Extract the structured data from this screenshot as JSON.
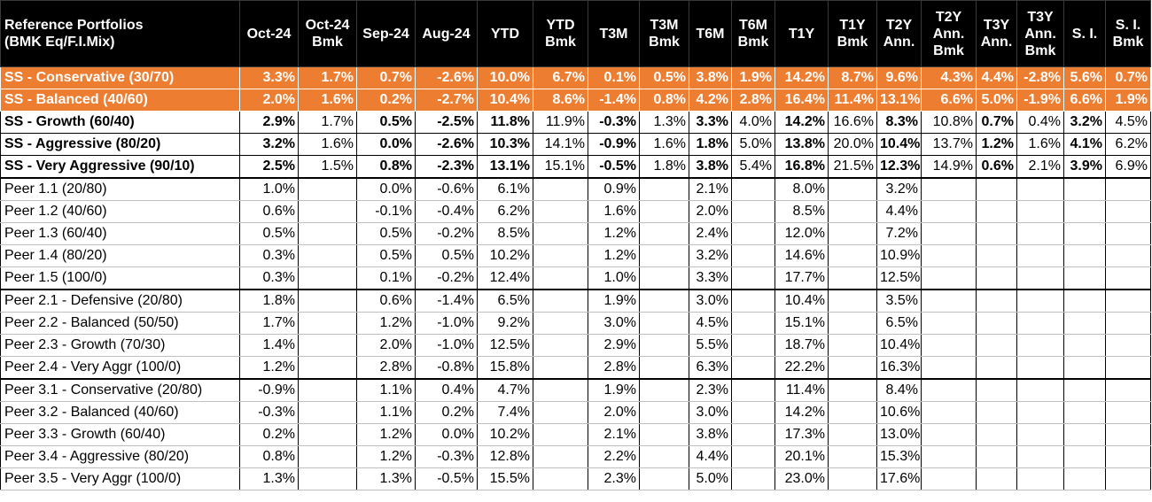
{
  "header": [
    [
      "Reference Portfolios",
      "(BMK Eq/F.I.Mix)"
    ],
    [
      "Oct-24"
    ],
    [
      "Oct-24",
      "Bmk"
    ],
    [
      "Sep-24"
    ],
    [
      "Aug-24"
    ],
    [
      "YTD"
    ],
    [
      "YTD",
      "Bmk"
    ],
    [
      "T3M"
    ],
    [
      "T3M",
      "Bmk"
    ],
    [
      "T6M"
    ],
    [
      "T6M",
      "Bmk"
    ],
    [
      "T1Y"
    ],
    [
      "T1Y",
      "Bmk"
    ],
    [
      "T2Y",
      "Ann."
    ],
    [
      "T2Y",
      "Ann.",
      "Bmk"
    ],
    [
      "T3Y",
      "Ann."
    ],
    [
      "T3Y",
      "Ann.",
      "Bmk"
    ],
    [
      "S. I."
    ],
    [
      "S. I.",
      "Bmk"
    ]
  ],
  "rows": [
    {
      "style": "orange",
      "cells": [
        "SS - Conservative (30/70)",
        "3.3%",
        "1.7%",
        "0.7%",
        "-2.6%",
        "10.0%",
        "6.7%",
        "0.1%",
        "0.5%",
        "3.8%",
        "1.9%",
        "14.2%",
        "8.7%",
        "9.6%",
        "4.3%",
        "4.4%",
        "-2.8%",
        "5.6%",
        "0.7%"
      ]
    },
    {
      "style": "orange",
      "cells": [
        "SS - Balanced (40/60)",
        "2.0%",
        "1.6%",
        "0.2%",
        "-2.7%",
        "10.4%",
        "8.6%",
        "-1.4%",
        "0.8%",
        "4.2%",
        "2.8%",
        "16.4%",
        "11.4%",
        "13.1%",
        "6.6%",
        "5.0%",
        "-1.9%",
        "6.6%",
        "1.9%"
      ]
    },
    {
      "style": "ss",
      "cells": [
        "SS - Growth (60/40)",
        "2.9%",
        "1.7%",
        "0.5%",
        "-2.5%",
        "11.8%",
        "11.9%",
        "-0.3%",
        "1.3%",
        "3.3%",
        "4.0%",
        "14.2%",
        "16.6%",
        "8.3%",
        "10.8%",
        "0.7%",
        "0.4%",
        "3.2%",
        "4.5%"
      ]
    },
    {
      "style": "ss",
      "cells": [
        "SS - Aggressive (80/20)",
        "3.2%",
        "1.6%",
        "0.0%",
        "-2.6%",
        "10.3%",
        "14.1%",
        "-0.9%",
        "1.6%",
        "1.8%",
        "5.0%",
        "13.8%",
        "20.0%",
        "10.4%",
        "13.7%",
        "1.2%",
        "1.6%",
        "4.1%",
        "6.2%"
      ]
    },
    {
      "style": "ss ss-last",
      "cells": [
        "SS - Very Aggressive (90/10)",
        "2.5%",
        "1.5%",
        "0.8%",
        "-2.3%",
        "13.1%",
        "15.1%",
        "-0.5%",
        "1.8%",
        "3.8%",
        "5.4%",
        "16.8%",
        "21.5%",
        "12.3%",
        "14.9%",
        "0.6%",
        "2.1%",
        "3.9%",
        "6.9%"
      ]
    },
    {
      "style": "peer group-start",
      "cells": [
        "Peer 1.1 (20/80)",
        "1.0%",
        "",
        "0.0%",
        "-0.6%",
        "6.1%",
        "",
        "0.9%",
        "",
        "2.1%",
        "",
        "8.0%",
        "",
        "3.2%",
        "",
        "",
        "",
        "",
        ""
      ]
    },
    {
      "style": "peer",
      "cells": [
        "Peer 1.2 (40/60)",
        "0.6%",
        "",
        "-0.1%",
        "-0.4%",
        "6.2%",
        "",
        "1.6%",
        "",
        "2.0%",
        "",
        "8.5%",
        "",
        "4.4%",
        "",
        "",
        "",
        "",
        ""
      ]
    },
    {
      "style": "peer",
      "cells": [
        "Peer 1.3 (60/40)",
        "0.5%",
        "",
        "0.5%",
        "-0.2%",
        "8.5%",
        "",
        "1.2%",
        "",
        "2.4%",
        "",
        "12.0%",
        "",
        "7.2%",
        "",
        "",
        "",
        "",
        ""
      ]
    },
    {
      "style": "peer",
      "cells": [
        "Peer 1.4 (80/20)",
        "0.3%",
        "",
        "0.5%",
        "0.5%",
        "10.2%",
        "",
        "1.2%",
        "",
        "3.2%",
        "",
        "14.6%",
        "",
        "10.9%",
        "",
        "",
        "",
        "",
        ""
      ]
    },
    {
      "style": "peer group-end",
      "cells": [
        "Peer 1.5 (100/0)",
        "0.3%",
        "",
        "0.1%",
        "-0.2%",
        "12.4%",
        "",
        "1.0%",
        "",
        "3.3%",
        "",
        "17.7%",
        "",
        "12.5%",
        "",
        "",
        "",
        "",
        ""
      ]
    },
    {
      "style": "peer",
      "cells": [
        "Peer 2.1  - Defensive  (20/80)",
        "1.8%",
        "",
        "0.6%",
        "-1.4%",
        "6.5%",
        "",
        "1.9%",
        "",
        "3.0%",
        "",
        "10.4%",
        "",
        "3.5%",
        "",
        "",
        "",
        "",
        ""
      ]
    },
    {
      "style": "peer",
      "cells": [
        "Peer 2.2  - Balanced  (50/50)",
        "1.7%",
        "",
        "1.2%",
        "-1.0%",
        "9.2%",
        "",
        "3.0%",
        "",
        "4.5%",
        "",
        "15.1%",
        "",
        "6.5%",
        "",
        "",
        "",
        "",
        ""
      ]
    },
    {
      "style": "peer",
      "cells": [
        "Peer 2.3  - Growth  (70/30)",
        "1.4%",
        "",
        "2.0%",
        "-1.0%",
        "12.5%",
        "",
        "2.9%",
        "",
        "5.5%",
        "",
        "18.7%",
        "",
        "10.4%",
        "",
        "",
        "",
        "",
        ""
      ]
    },
    {
      "style": "peer group-end",
      "cells": [
        "Peer 2.4  - Very Aggr  (100/0)",
        "1.2%",
        "",
        "2.8%",
        "-0.8%",
        "15.8%",
        "",
        "2.8%",
        "",
        "6.3%",
        "",
        "22.2%",
        "",
        "16.3%",
        "",
        "",
        "",
        "",
        ""
      ]
    },
    {
      "style": "peer",
      "cells": [
        "Peer 3.1 - Conservative (20/80)",
        "-0.9%",
        "",
        "1.1%",
        "0.4%",
        "4.7%",
        "",
        "1.9%",
        "",
        "2.3%",
        "",
        "11.4%",
        "",
        "8.4%",
        "",
        "",
        "",
        "",
        ""
      ]
    },
    {
      "style": "peer",
      "cells": [
        "Peer 3.2 - Balanced  (40/60)",
        "-0.3%",
        "",
        "1.1%",
        "0.2%",
        "7.4%",
        "",
        "2.0%",
        "",
        "3.0%",
        "",
        "14.2%",
        "",
        "10.6%",
        "",
        "",
        "",
        "",
        ""
      ]
    },
    {
      "style": "peer",
      "cells": [
        "Peer 3.3 - Growth  (60/40)",
        "0.2%",
        "",
        "1.2%",
        "0.0%",
        "10.2%",
        "",
        "2.1%",
        "",
        "3.8%",
        "",
        "17.3%",
        "",
        "13.0%",
        "",
        "",
        "",
        "",
        ""
      ]
    },
    {
      "style": "peer",
      "cells": [
        "Peer 3.4 - Aggressive  (80/20)",
        "0.8%",
        "",
        "1.2%",
        "-0.3%",
        "12.8%",
        "",
        "2.2%",
        "",
        "4.4%",
        "",
        "20.1%",
        "",
        "15.3%",
        "",
        "",
        "",
        "",
        ""
      ]
    },
    {
      "style": "peer",
      "cells": [
        "Peer 3.5  - Very Aggr (100/0)",
        "1.3%",
        "",
        "1.3%",
        "-0.5%",
        "15.5%",
        "",
        "2.3%",
        "",
        "5.0%",
        "",
        "23.0%",
        "",
        "17.6%",
        "",
        "",
        "",
        "",
        ""
      ]
    }
  ]
}
